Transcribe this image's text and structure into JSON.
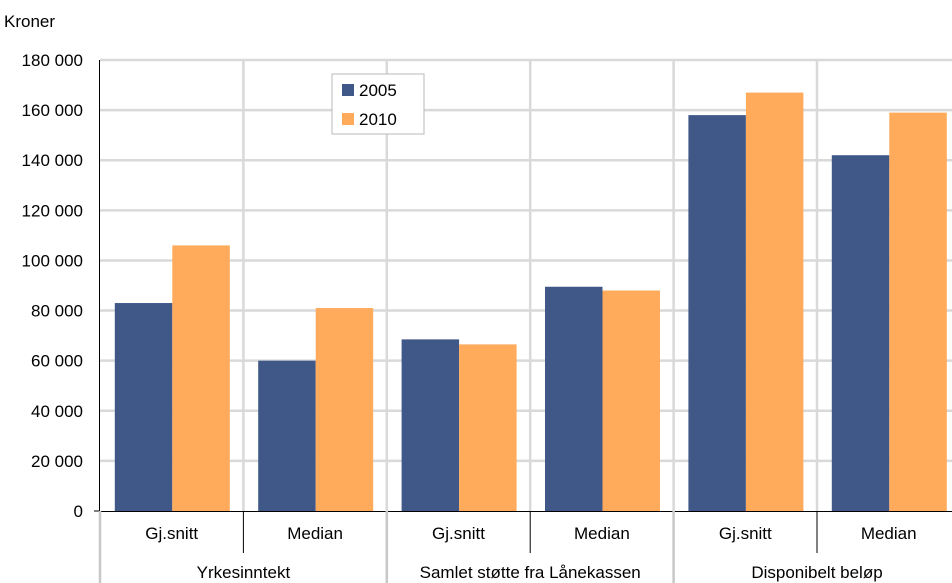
{
  "chart_data": {
    "type": "bar",
    "ylabel": "Kroner",
    "ylim": [
      0,
      180000
    ],
    "yticks": [
      0,
      20000,
      40000,
      60000,
      80000,
      100000,
      120000,
      140000,
      160000,
      180000
    ],
    "ytick_labels": [
      "0",
      "20 000",
      "40 000",
      "60 000",
      "80 000",
      "100 000",
      "120 000",
      "140 000",
      "160 000",
      "180 000"
    ],
    "groups": [
      "Yrkesinntekt",
      "Samlet støtte fra Lånekassen",
      "Disponibelt beløp"
    ],
    "categories": [
      "Gj.snitt",
      "Median",
      "Gj.snitt",
      "Median",
      "Gj.snitt",
      "Median"
    ],
    "series": [
      {
        "name": "2005",
        "color": "#3F5887",
        "values": [
          83000,
          60000,
          68500,
          89500,
          158000,
          142000
        ]
      },
      {
        "name": "2010",
        "color": "#FFAB5B",
        "values": [
          106000,
          81000,
          66500,
          88000,
          167000,
          159000
        ]
      }
    ],
    "grid": true,
    "legend": "top-left"
  }
}
